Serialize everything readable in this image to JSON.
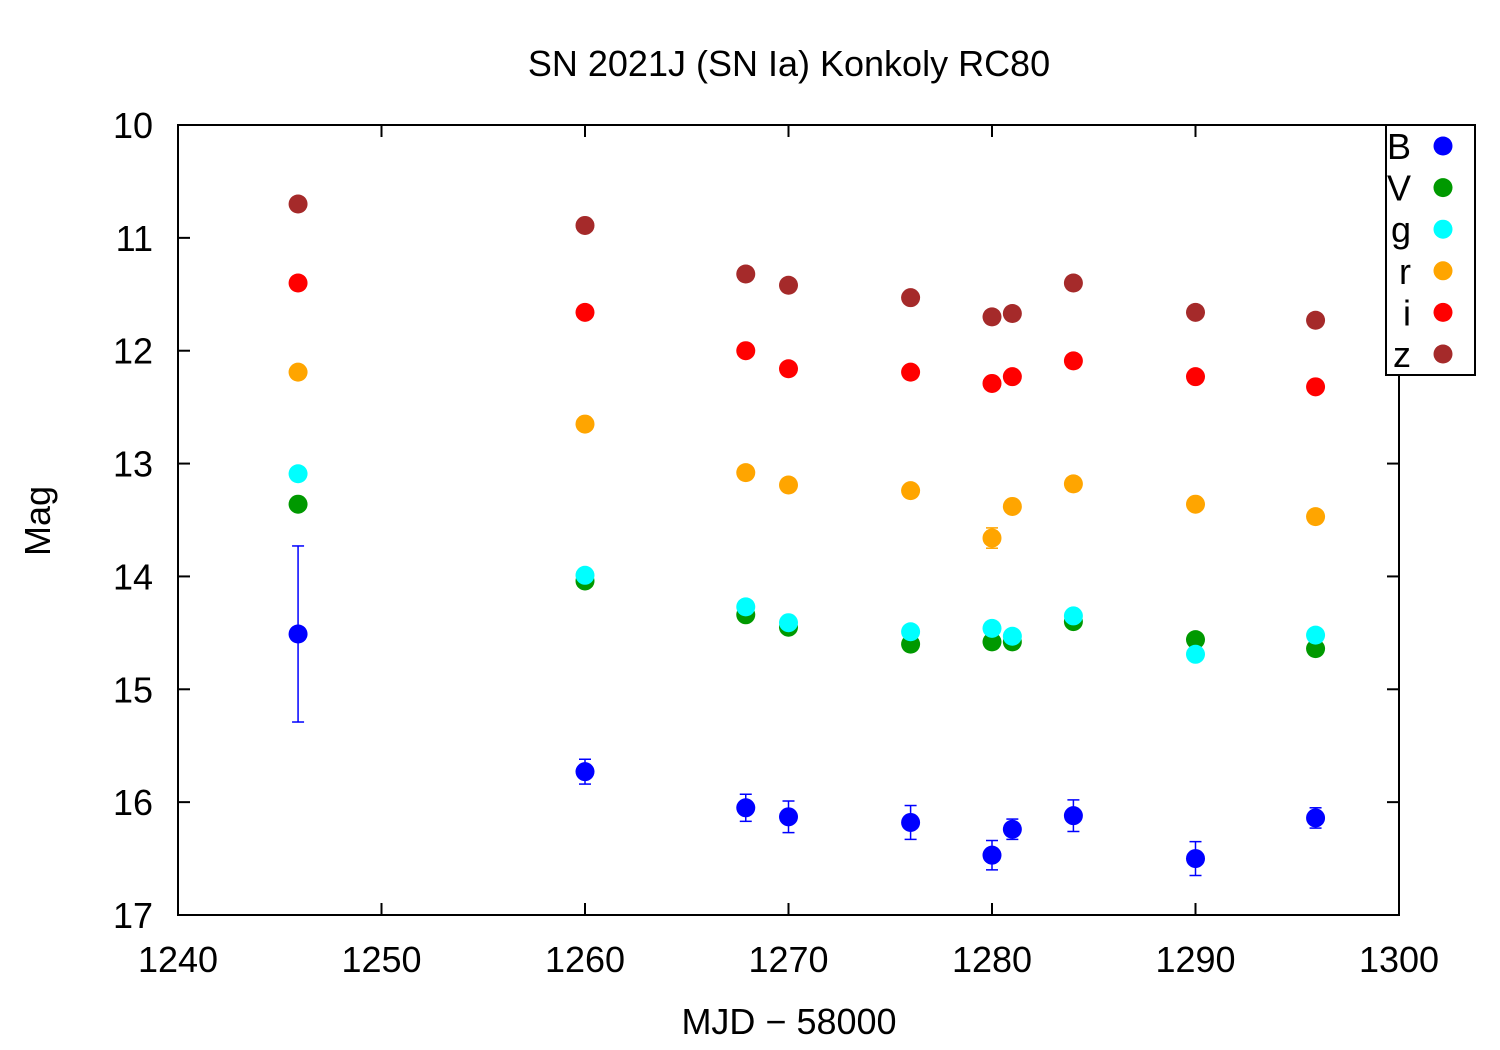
{
  "chart_data": {
    "type": "scatter",
    "title": "SN 2021J (SN Ia) Konkoly RC80",
    "xlabel": "MJD − 58000",
    "ylabel": "Mag",
    "xlim": [
      1240,
      1300
    ],
    "ylim": [
      10,
      17
    ],
    "y_inverted": true,
    "grid": false,
    "legend_position": "top-right",
    "x_ticks": [
      "1240",
      "1250",
      "1260",
      "1270",
      "1280",
      "1290",
      "1300"
    ],
    "y_ticks": [
      "10",
      "11",
      "12",
      "13",
      "14",
      "15",
      "16",
      "17"
    ],
    "series": [
      {
        "name": "B",
        "color": "#0000ff",
        "points": [
          {
            "x": 1245.9,
            "y": 14.51,
            "err": 0.78
          },
          {
            "x": 1260.0,
            "y": 15.73,
            "err": 0.11
          },
          {
            "x": 1267.9,
            "y": 16.05,
            "err": 0.12
          },
          {
            "x": 1270.0,
            "y": 16.13,
            "err": 0.14
          },
          {
            "x": 1276.0,
            "y": 16.18,
            "err": 0.15
          },
          {
            "x": 1280.0,
            "y": 16.47,
            "err": 0.13
          },
          {
            "x": 1281.0,
            "y": 16.24,
            "err": 0.09
          },
          {
            "x": 1284.0,
            "y": 16.12,
            "err": 0.14
          },
          {
            "x": 1290.0,
            "y": 16.5,
            "err": 0.15
          },
          {
            "x": 1295.9,
            "y": 16.14,
            "err": 0.09
          }
        ]
      },
      {
        "name": "V",
        "color": "#009900",
        "points": [
          {
            "x": 1245.9,
            "y": 13.36
          },
          {
            "x": 1260.0,
            "y": 14.04
          },
          {
            "x": 1267.9,
            "y": 14.34
          },
          {
            "x": 1270.0,
            "y": 14.45
          },
          {
            "x": 1276.0,
            "y": 14.6
          },
          {
            "x": 1280.0,
            "y": 14.58
          },
          {
            "x": 1281.0,
            "y": 14.58
          },
          {
            "x": 1284.0,
            "y": 14.4
          },
          {
            "x": 1290.0,
            "y": 14.56
          },
          {
            "x": 1295.9,
            "y": 14.64
          }
        ]
      },
      {
        "name": "g",
        "color": "#00ffff",
        "points": [
          {
            "x": 1245.9,
            "y": 13.09
          },
          {
            "x": 1260.0,
            "y": 13.99
          },
          {
            "x": 1267.9,
            "y": 14.27
          },
          {
            "x": 1270.0,
            "y": 14.41
          },
          {
            "x": 1276.0,
            "y": 14.49
          },
          {
            "x": 1280.0,
            "y": 14.46
          },
          {
            "x": 1281.0,
            "y": 14.53
          },
          {
            "x": 1284.0,
            "y": 14.35
          },
          {
            "x": 1290.0,
            "y": 14.69
          },
          {
            "x": 1295.9,
            "y": 14.52
          }
        ]
      },
      {
        "name": "r",
        "color": "#ffa500",
        "points": [
          {
            "x": 1245.9,
            "y": 12.19
          },
          {
            "x": 1260.0,
            "y": 12.65
          },
          {
            "x": 1267.9,
            "y": 13.08
          },
          {
            "x": 1270.0,
            "y": 13.19
          },
          {
            "x": 1276.0,
            "y": 13.24
          },
          {
            "x": 1280.0,
            "y": 13.66,
            "err": 0.09
          },
          {
            "x": 1281.0,
            "y": 13.38
          },
          {
            "x": 1284.0,
            "y": 13.18
          },
          {
            "x": 1290.0,
            "y": 13.36
          },
          {
            "x": 1295.9,
            "y": 13.47
          }
        ]
      },
      {
        "name": "i",
        "color": "#ff0000",
        "points": [
          {
            "x": 1245.9,
            "y": 11.4
          },
          {
            "x": 1260.0,
            "y": 11.66
          },
          {
            "x": 1267.9,
            "y": 12.0
          },
          {
            "x": 1270.0,
            "y": 12.16
          },
          {
            "x": 1276.0,
            "y": 12.19
          },
          {
            "x": 1280.0,
            "y": 12.29
          },
          {
            "x": 1281.0,
            "y": 12.23
          },
          {
            "x": 1284.0,
            "y": 12.09
          },
          {
            "x": 1290.0,
            "y": 12.23
          },
          {
            "x": 1295.9,
            "y": 12.32
          }
        ]
      },
      {
        "name": "z",
        "color": "#a52a2a",
        "points": [
          {
            "x": 1245.9,
            "y": 10.7
          },
          {
            "x": 1260.0,
            "y": 10.89
          },
          {
            "x": 1267.9,
            "y": 11.32
          },
          {
            "x": 1270.0,
            "y": 11.42
          },
          {
            "x": 1276.0,
            "y": 11.53
          },
          {
            "x": 1280.0,
            "y": 11.7
          },
          {
            "x": 1281.0,
            "y": 11.67
          },
          {
            "x": 1284.0,
            "y": 11.4
          },
          {
            "x": 1290.0,
            "y": 11.66
          },
          {
            "x": 1295.9,
            "y": 11.73
          }
        ]
      }
    ]
  }
}
